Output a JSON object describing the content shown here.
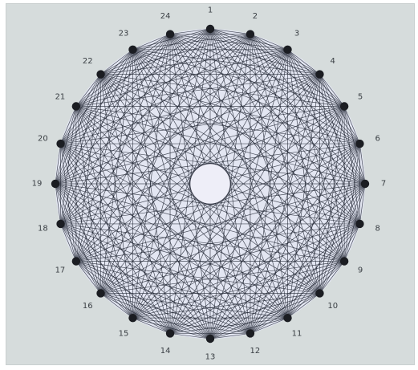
{
  "diagram": {
    "type": "complete-graph",
    "node_labels": [
      "1",
      "2",
      "3",
      "4",
      "5",
      "6",
      "7",
      "8",
      "9",
      "10",
      "11",
      "12",
      "13",
      "14",
      "15",
      "16",
      "17",
      "18",
      "19",
      "20",
      "21",
      "22",
      "23",
      "24"
    ],
    "colors": {
      "background": "#d6dcdc",
      "disc": "#e3e6f2",
      "edge": "#1e2230",
      "node": "#1b1d22",
      "center_hole": "#eeeef8",
      "label": "#3a3f44"
    }
  }
}
